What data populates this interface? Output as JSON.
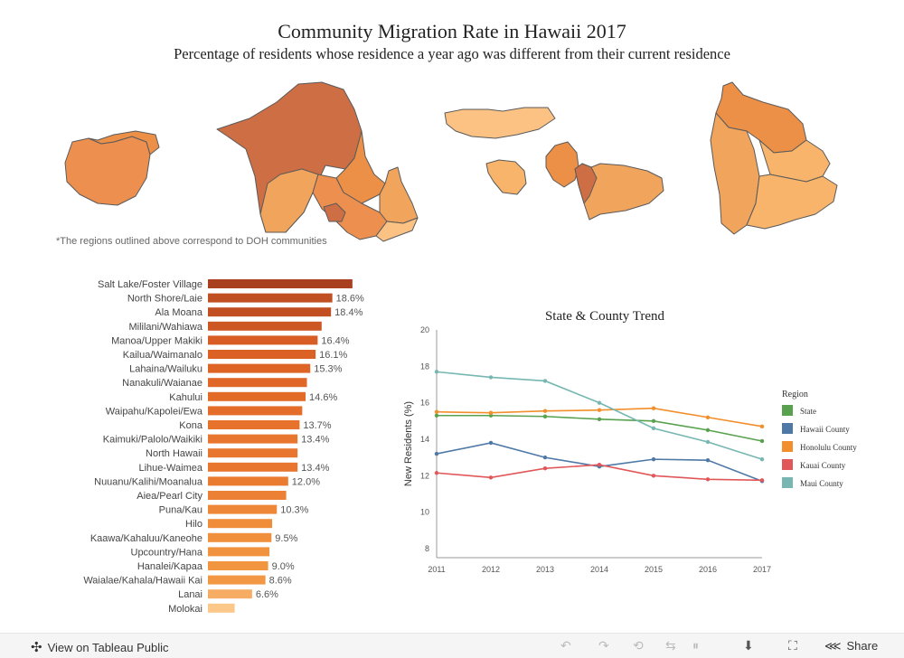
{
  "title": "Community Migration Rate in Hawaii 2017",
  "subtitle": "Percentage of residents whose residence a year ago was different from their current residence",
  "footnote": "*The regions outlined above correspond to DOH communities",
  "map_regions": [
    {
      "name": "Kauai",
      "color": "#ec8f4f"
    },
    {
      "name": "Oahu",
      "color": "#cd6e45"
    },
    {
      "name": "Molokai",
      "color": "#fbc284"
    },
    {
      "name": "Lanai",
      "color": "#f8b46a"
    },
    {
      "name": "Maui",
      "color": "#f1a45c"
    },
    {
      "name": "Hawaii",
      "color": "#ed9047"
    }
  ],
  "chart_data": [
    {
      "type": "bar",
      "orientation": "horizontal",
      "title": "",
      "categories": [
        "Salt Lake/Foster Village",
        "North Shore/Laie",
        "Ala Moana",
        "Mililani/Wahiawa",
        "Manoa/Upper Makiki",
        "Kailua/Waimanalo",
        "Lahaina/Wailuku",
        "Nanakuli/Waianae",
        "Kahului",
        "Waipahu/Kapolei/Ewa",
        "Kona",
        "Kaimuki/Palolo/Waikiki",
        "North Hawaii",
        "Lihue-Waimea",
        "Nuuanu/Kalihi/Moanalua",
        "Aiea/Pearl City",
        "Puna/Kau",
        "Hilo",
        "Kaawa/Kahaluu/Kaneohe",
        "Upcountry/Hana",
        "Hanalei/Kapaa",
        "Waialae/Kahala/Hawaii Kai",
        "Lanai",
        "Molokai"
      ],
      "values": [
        21.6,
        18.6,
        18.4,
        17.0,
        16.4,
        16.1,
        15.3,
        14.8,
        14.6,
        14.1,
        13.7,
        13.4,
        13.4,
        13.4,
        12.0,
        11.7,
        10.3,
        9.6,
        9.5,
        9.2,
        9.0,
        8.6,
        6.6,
        4.0
      ],
      "labels": [
        "",
        "18.6%",
        "18.4%",
        "",
        "16.4%",
        "16.1%",
        "15.3%",
        "",
        "14.6%",
        "",
        "13.7%",
        "13.4%",
        "",
        "13.4%",
        "12.0%",
        "",
        "10.3%",
        "",
        "9.5%",
        "",
        "9.0%",
        "8.6%",
        "6.6%",
        ""
      ],
      "colors": [
        "#a8401f",
        "#c04f22",
        "#c24f22",
        "#cd5722",
        "#d75d24",
        "#db6125",
        "#de6425",
        "#e06727",
        "#e26b28",
        "#e46d29",
        "#e6722c",
        "#e8762e",
        "#e8762e",
        "#e8762e",
        "#ea7c31",
        "#ec8034",
        "#ee8838",
        "#f08d3b",
        "#f0903c",
        "#f1933e",
        "#f29540",
        "#f29844",
        "#f6ac62",
        "#fbc889"
      ]
    },
    {
      "type": "line",
      "title": "State & County Trend",
      "xlabel": "",
      "ylabel": "New Residents (%)",
      "x": [
        2011,
        2012,
        2013,
        2014,
        2015,
        2016,
        2017
      ],
      "ylim": [
        7.5,
        20
      ],
      "yticks": [
        8,
        10,
        12,
        14,
        16,
        18,
        20
      ],
      "legend_title": "Region",
      "series": [
        {
          "name": "State",
          "color": "#59a14f",
          "values": [
            15.3,
            15.3,
            15.25,
            15.1,
            15.0,
            14.5,
            13.9
          ]
        },
        {
          "name": "Hawaii County",
          "color": "#4e79a7",
          "values": [
            13.2,
            13.8,
            13.0,
            12.5,
            12.9,
            12.85,
            11.7
          ]
        },
        {
          "name": "Honolulu County",
          "color": "#f28e2b",
          "values": [
            15.5,
            15.45,
            15.55,
            15.6,
            15.7,
            15.2,
            14.7
          ]
        },
        {
          "name": "Kauai County",
          "color": "#e15759",
          "values": [
            12.15,
            11.9,
            12.4,
            12.6,
            12.0,
            11.8,
            11.75
          ]
        },
        {
          "name": "Maui County",
          "color": "#76b7b2",
          "values": [
            17.7,
            17.4,
            17.2,
            16.0,
            14.6,
            13.85,
            12.9
          ]
        }
      ]
    }
  ],
  "toolbar": {
    "view_label": "View on Tableau Public",
    "share_label": "Share"
  }
}
